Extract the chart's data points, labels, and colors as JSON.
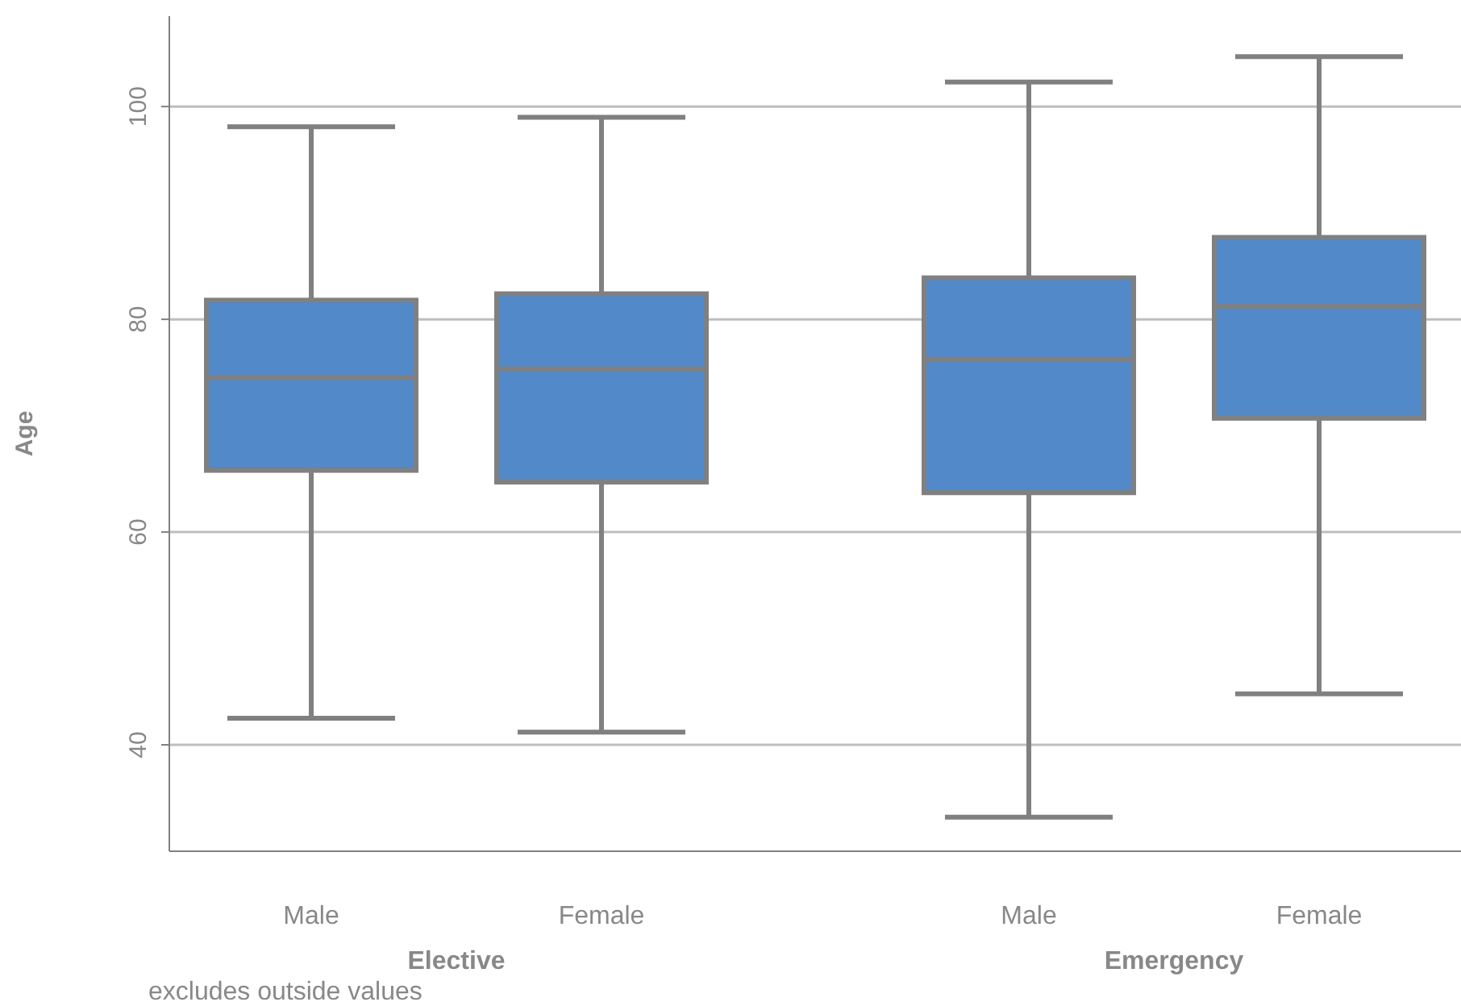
{
  "chart_data": {
    "type": "box",
    "ylabel": "Age",
    "categories": [
      "Male",
      "Female",
      "Male",
      "Female"
    ],
    "series": [
      {
        "color": "#5289c8",
        "boxes": [
          {
            "low": 42.5,
            "q1": 65.8,
            "median": 74.5,
            "q3": 81.8,
            "high": 98.1
          },
          {
            "low": 41.2,
            "q1": 64.7,
            "median": 75.3,
            "q3": 82.4,
            "high": 99.0
          },
          {
            "low": 33.2,
            "q1": 63.7,
            "median": 76.2,
            "q3": 83.9,
            "high": 102.3
          },
          {
            "low": 44.8,
            "q1": 70.7,
            "median": 81.2,
            "q3": 87.7,
            "high": 104.7
          }
        ]
      }
    ],
    "annotations": [
      "Elective",
      "Emergency",
      "excludes outside values"
    ],
    "ylim": [
      30,
      108.5
    ],
    "yticks": [
      40,
      60,
      80,
      100
    ],
    "grid": "y"
  }
}
